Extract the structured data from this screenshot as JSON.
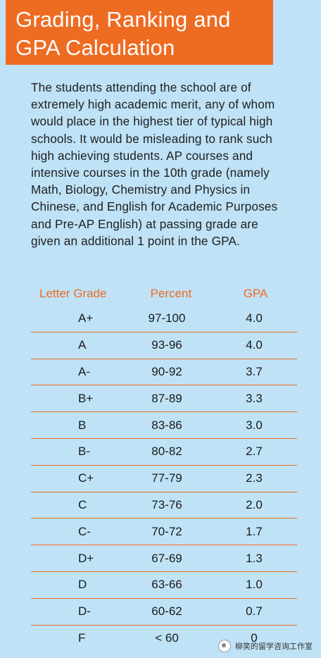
{
  "header": {
    "title_line1": "Grading, Ranking and",
    "title_line2": "GPA Calculation"
  },
  "intro": {
    "lines": [
      "The students attending the school are of",
      "extremely high academic merit, any of whom",
      "would place in the highest tier of typical high",
      "schools. It would be misleading to rank such",
      "high achieving students. AP courses and",
      "intensive courses in the 10th grade (namely",
      "Math, Biology, Chemistry and Physics in",
      "Chinese, and English for Academic Purposes",
      "and Pre-AP English) at passing grade are",
      "given an additional 1 point in the GPA."
    ]
  },
  "table": {
    "headers": [
      "Letter Grade",
      "Percent",
      "GPA"
    ],
    "rows": [
      [
        "A+",
        "97-100",
        "4.0"
      ],
      [
        "A",
        "93-96",
        "4.0"
      ],
      [
        "A-",
        "90-92",
        "3.7"
      ],
      [
        "B+",
        "87-89",
        "3.3"
      ],
      [
        "B",
        "83-86",
        "3.0"
      ],
      [
        "B-",
        "80-82",
        "2.7"
      ],
      [
        "C+",
        "77-79",
        "2.3"
      ],
      [
        "C",
        "73-76",
        "2.0"
      ],
      [
        "C-",
        "70-72",
        "1.7"
      ],
      [
        "D+",
        "67-69",
        "1.3"
      ],
      [
        "D",
        "63-66",
        "1.0"
      ],
      [
        "D-",
        "60-62",
        "0.7"
      ],
      [
        "F",
        "< 60",
        "0"
      ]
    ]
  },
  "watermark": {
    "text": "柳笑的留学咨询工作室",
    "icon": "wechat-icon"
  },
  "colors": {
    "accent": "#ee6b22",
    "background": "#bfe2f6"
  }
}
